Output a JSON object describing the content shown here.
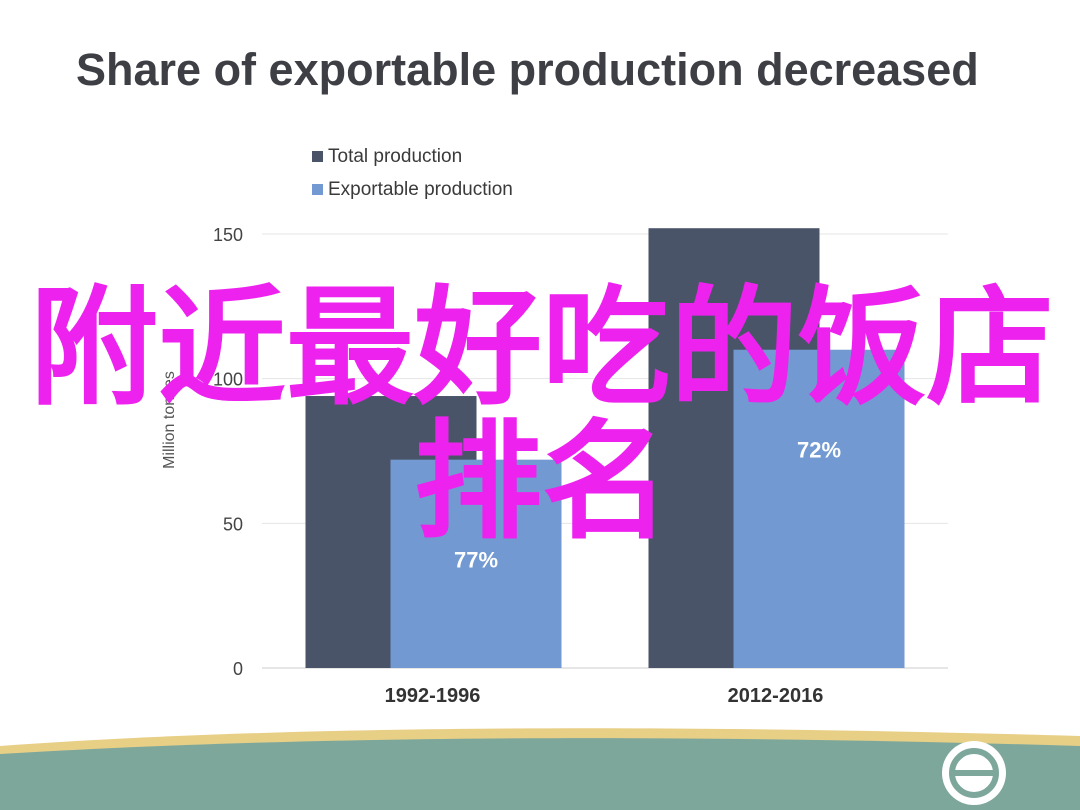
{
  "slide": {
    "title": "Share of exportable production decreased",
    "overlay_text": "附近最好吃的饭店排名"
  },
  "colors": {
    "total": "#4a5468",
    "exportable": "#7299d2",
    "overlay": "#ee22ee",
    "footer_band": "#7ea79c",
    "footer_stripe": "#e8cf86"
  },
  "icons": {
    "logo": "circle-logo-icon"
  },
  "chart_data": {
    "type": "bar",
    "title": "Share of exportable production decreased",
    "ylabel": "Million tonnes",
    "ylim": [
      0,
      150
    ],
    "yticks": [
      0,
      50,
      100,
      150
    ],
    "categories": [
      "1992-1996",
      "2012-2016"
    ],
    "series": [
      {
        "name": "Total production",
        "values": [
          94,
          152
        ]
      },
      {
        "name": "Exportable production",
        "values": [
          72,
          110
        ]
      }
    ],
    "data_labels": [
      "77%",
      "72%"
    ],
    "legend": "top-left",
    "grid": true
  }
}
